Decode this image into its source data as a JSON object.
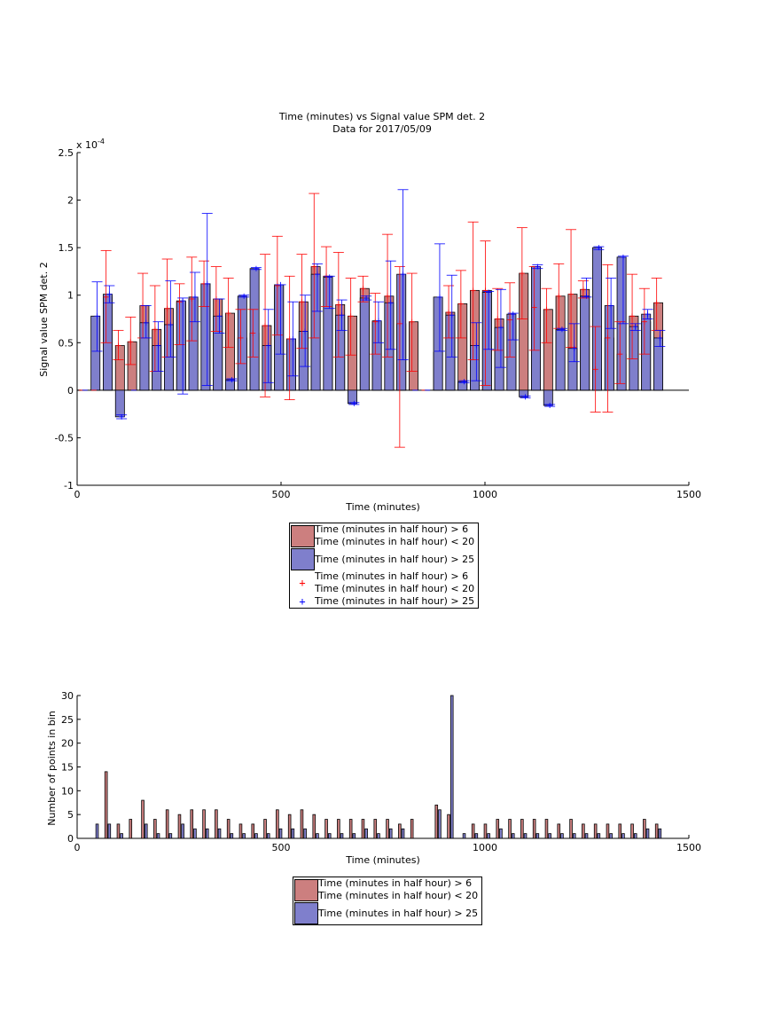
{
  "colors": {
    "red_bar": "#cc7f7f",
    "blue_bar": "#7f7fcc",
    "red_err": "#ff0000",
    "blue_err": "#0000ff"
  },
  "chart_data": [
    {
      "type": "bar",
      "title": "Time (minutes) vs Signal value SPM det. 2",
      "subtitle": "Data for 2017/05/09",
      "xlabel": "Time (minutes)",
      "ylabel": "Signal value SPM det. 2",
      "y_multiplier_label": "x 10",
      "y_multiplier_exp": "-4",
      "xlim": [
        0,
        1500
      ],
      "ylim": [
        -1,
        2.5
      ],
      "xticks": [
        0,
        500,
        1000,
        1500
      ],
      "yticks": [
        -1,
        -0.5,
        0,
        0.5,
        1,
        1.5,
        2,
        2.5
      ],
      "x": [
        15,
        45,
        75,
        105,
        135,
        165,
        195,
        225,
        255,
        285,
        315,
        345,
        375,
        405,
        435,
        465,
        495,
        525,
        555,
        585,
        615,
        645,
        675,
        705,
        735,
        765,
        795,
        825,
        855,
        885,
        915,
        945,
        975,
        1005,
        1035,
        1065,
        1095,
        1125,
        1155,
        1185,
        1215,
        1245,
        1275,
        1305,
        1335,
        1365,
        1395,
        1425
      ],
      "series": [
        {
          "name": "Time (minutes in half hour) > 6\nTime (minutes in half hour) < 20",
          "values": [
            0,
            0,
            0.98,
            0.47,
            0.51,
            0.89,
            0.64,
            0.86,
            0.93,
            0.96,
            1.12,
            0.96,
            0.81,
            0.55,
            0.6,
            0.68,
            1.1,
            0.54,
            0.93,
            1.3,
            1.2,
            0.9,
            0.78,
            1.07,
            0.72,
            0.99,
            0.7,
            0.72,
            0,
            0.4,
            0.82,
            0.91,
            1.05,
            1.05,
            0.75,
            0.74,
            1.23,
            0.87,
            0.85,
            0.99,
            1.01,
            1.06,
            0.22,
            0.55,
            0.38,
            0.78,
            0.72,
            0.92
          ],
          "err_low": [
            null,
            null,
            0.5,
            0.32,
            0.27,
            0.55,
            0.2,
            0.35,
            0.48,
            0.52,
            0.88,
            0.62,
            0.45,
            0.28,
            0.35,
            -0.07,
            0.58,
            -0.1,
            0.44,
            0.55,
            0.88,
            0.35,
            0.37,
            0.93,
            0.38,
            0.35,
            -0.6,
            0.2,
            null,
            null,
            0.55,
            0.55,
            0.32,
            0.05,
            0.42,
            0.35,
            0.75,
            0.42,
            0.5,
            0.65,
            0.45,
            0.97,
            -0.23,
            -0.23,
            0.07,
            0.33,
            0.38,
            0.63
          ],
          "err_high": [
            null,
            null,
            1.47,
            0.63,
            0.77,
            1.23,
            1.1,
            1.38,
            1.12,
            1.4,
            1.36,
            1.3,
            1.18,
            0.85,
            0.85,
            1.43,
            1.62,
            1.2,
            1.43,
            2.07,
            1.51,
            1.45,
            1.18,
            1.2,
            1.02,
            1.64,
            1.3,
            1.23,
            null,
            null,
            1.1,
            1.26,
            1.77,
            1.57,
            1.07,
            1.13,
            1.71,
            1.3,
            1.07,
            1.33,
            1.69,
            1.15,
            0.67,
            1.32,
            0.72,
            1.22,
            1.07,
            1.18
          ]
        },
        {
          "name": "Time (minutes in half hour) > 25",
          "values": [
            0,
            0.78,
            1.01,
            -0.28,
            0,
            0.71,
            0.47,
            0.69,
            0.94,
            0.98,
            1.12,
            0.78,
            0.11,
            0.99,
            1.28,
            0.47,
            1.11,
            0.54,
            0.62,
            1.22,
            1.19,
            0.79,
            -0.14,
            0.97,
            0.73,
            0.92,
            1.22,
            0,
            0,
            0.98,
            0.79,
            0.09,
            0.47,
            1.03,
            0.66,
            0.8,
            -0.07,
            1.3,
            -0.16,
            0.64,
            0.44,
            0.99,
            1.5,
            0.89,
            1.4,
            0.67,
            0.8,
            0.55
          ],
          "err_low": [
            null,
            0.41,
            0.92,
            -0.3,
            null,
            0.55,
            0.2,
            0.35,
            -0.04,
            0.72,
            0.05,
            0.6,
            0.1,
            0.98,
            1.27,
            0.08,
            0.38,
            0.15,
            0.25,
            0.83,
            0.86,
            0.63,
            -0.15,
            0.95,
            0.5,
            0.43,
            0.32,
            null,
            null,
            0.41,
            0.35,
            0.08,
            0.1,
            0.43,
            0.24,
            0.53,
            -0.08,
            1.28,
            -0.17,
            0.63,
            0.3,
            0.98,
            1.48,
            0.65,
            0.7,
            0.63,
            0.75,
            0.46
          ],
          "err_high": [
            null,
            1.14,
            1.1,
            -0.26,
            null,
            0.89,
            0.72,
            1.15,
            0.97,
            1.24,
            1.86,
            0.96,
            0.12,
            1.0,
            1.29,
            0.85,
            1.11,
            0.93,
            1.0,
            1.33,
            1.2,
            0.95,
            -0.13,
            0.99,
            0.93,
            1.36,
            2.11,
            null,
            null,
            1.54,
            1.21,
            0.1,
            0.71,
            1.04,
            1.06,
            0.81,
            -0.06,
            1.32,
            -0.15,
            0.65,
            0.7,
            1.18,
            1.51,
            1.18,
            1.41,
            0.7,
            0.85,
            0.63
          ]
        }
      ],
      "legend": [
        {
          "symbol": "bar",
          "color": "#cc7f7f",
          "label": "Time (minutes in half hour) > 6\nTime (minutes in half hour) < 20"
        },
        {
          "symbol": "bar",
          "color": "#7f7fcc",
          "label": "Time (minutes in half hour) > 25"
        },
        {
          "symbol": "plus",
          "color": "#ff0000",
          "label": "Time (minutes in half hour) > 6\nTime (minutes in half hour) < 20"
        },
        {
          "symbol": "plus",
          "color": "#0000ff",
          "label": "Time (minutes in half hour) > 25"
        }
      ],
      "legend_position": "below"
    },
    {
      "type": "bar",
      "title": "",
      "xlabel": "Time (minutes)",
      "ylabel": "Number of points in bin",
      "xlim": [
        0,
        1500
      ],
      "ylim": [
        0,
        30
      ],
      "xticks": [
        0,
        500,
        1000,
        1500
      ],
      "yticks": [
        0,
        5,
        10,
        15,
        20,
        25,
        30
      ],
      "x": [
        15,
        45,
        75,
        105,
        135,
        165,
        195,
        225,
        255,
        285,
        315,
        345,
        375,
        405,
        435,
        465,
        495,
        525,
        555,
        585,
        615,
        645,
        675,
        705,
        735,
        765,
        795,
        825,
        855,
        885,
        915,
        945,
        975,
        1005,
        1035,
        1065,
        1095,
        1125,
        1155,
        1185,
        1215,
        1245,
        1275,
        1305,
        1335,
        1365,
        1395,
        1425
      ],
      "series": [
        {
          "name": "Time (minutes in half hour) > 6\nTime (minutes in half hour) < 20",
          "values": [
            0,
            0,
            14,
            3,
            4,
            8,
            4,
            6,
            5,
            6,
            6,
            6,
            4,
            3,
            3,
            4,
            6,
            5,
            6,
            5,
            4,
            4,
            4,
            4,
            4,
            4,
            3,
            4,
            0,
            7,
            5,
            0,
            3,
            3,
            4,
            4,
            4,
            4,
            4,
            3,
            4,
            3,
            3,
            3,
            3,
            3,
            4,
            3
          ]
        },
        {
          "name": "Time (minutes in half hour) > 25",
          "values": [
            0,
            3,
            3,
            1,
            0,
            3,
            1,
            1,
            3,
            2,
            2,
            2,
            1,
            1,
            1,
            1,
            2,
            2,
            2,
            1,
            1,
            1,
            1,
            2,
            1,
            2,
            2,
            0,
            0,
            6,
            30,
            1,
            1,
            1,
            2,
            1,
            1,
            1,
            1,
            1,
            1,
            1,
            1,
            1,
            1,
            1,
            2,
            2
          ]
        }
      ],
      "legend": [
        {
          "symbol": "bar",
          "color": "#cc7f7f",
          "label": "Time (minutes in half hour) > 6\nTime (minutes in half hour) < 20"
        },
        {
          "symbol": "bar",
          "color": "#7f7fcc",
          "label": "Time (minutes in half hour) > 25"
        }
      ],
      "legend_position": "below"
    }
  ]
}
